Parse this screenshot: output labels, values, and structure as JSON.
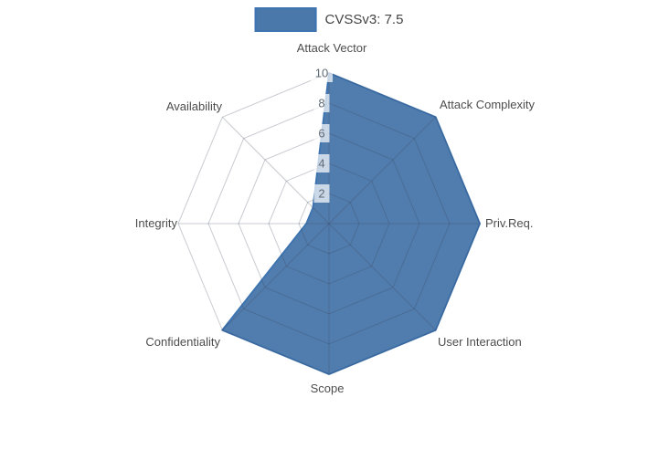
{
  "legend": {
    "label": "CVSSv3: 7.5"
  },
  "chart_data": {
    "type": "radar",
    "title": "CVSSv3: 7.5",
    "axes": [
      "Attack Vector",
      "Attack Complexity",
      "Priv.Req.",
      "User Interaction",
      "Scope",
      "Confidentiality",
      "Integrity",
      "Availability"
    ],
    "series": [
      {
        "name": "CVSSv3: 7.5",
        "values": [
          10,
          10,
          10,
          10,
          10,
          10,
          1.5,
          1.5
        ],
        "fill_color": "#4a78ab",
        "line_color": "#3e74b0"
      }
    ],
    "radial_ticks": [
      2,
      4,
      6,
      8,
      10
    ],
    "range": [
      0,
      10
    ],
    "grid": "polygonal web with radial spokes",
    "legend_position": "top-center",
    "colors": {
      "background": "#ffffff",
      "axis_label": "#4d4d4d",
      "tick_label": "#5f6b76",
      "tick_box_bg": "rgba(255,255,255,0.7)",
      "grid_line": "rgba(58,68,88,0.28)"
    }
  }
}
